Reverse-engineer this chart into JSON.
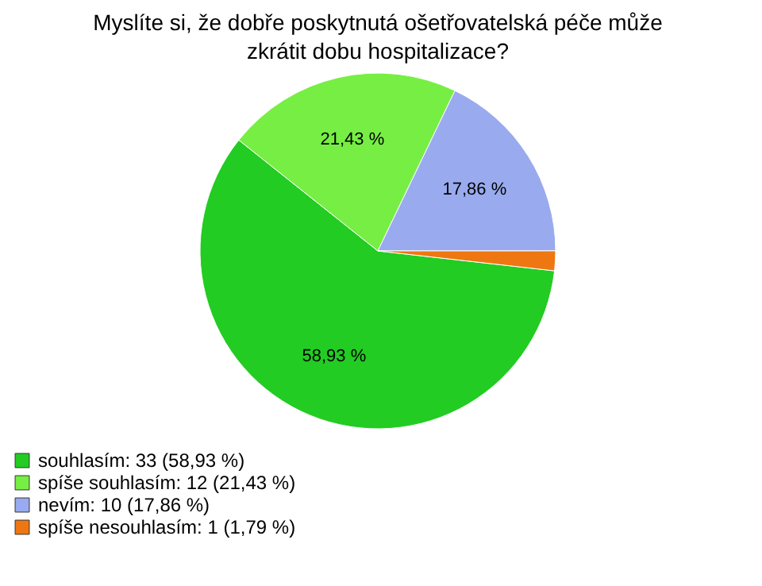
{
  "chart_data": {
    "type": "pie",
    "title": "Myslíte si, že dobře poskytnutá ošetřovatelská péče může zkrátit dobu hospitalizace?",
    "categories": [
      "souhlasím: 33 (58,93 %)",
      "spíše souhlasím: 12 (21,43 %)",
      "nevím: 10 (17,86 %)",
      "spíše nesouhlasím: 1 (1,79 %)"
    ],
    "values": [
      58.93,
      21.43,
      17.86,
      1.79
    ],
    "value_labels": [
      "58,93 %",
      "21,43 %",
      "17,86 %",
      null
    ],
    "colors": [
      "#22cc22",
      "#77ee44",
      "#99aaee",
      "#ee7711"
    ],
    "legend": "bottom left"
  }
}
